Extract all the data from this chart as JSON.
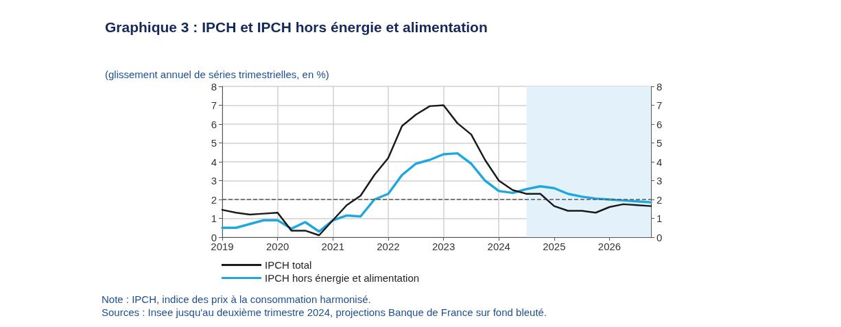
{
  "chart_data": {
    "type": "line",
    "title": "Graphique 3 : IPCH et IPCH hors énergie et alimentation",
    "subtitle": "(glissement annuel de séries trimestrielles, en %)",
    "x": [
      2019,
      2019.25,
      2019.5,
      2019.75,
      2020,
      2020.25,
      2020.5,
      2020.75,
      2021,
      2021.25,
      2021.5,
      2021.75,
      2022,
      2022.25,
      2022.5,
      2022.75,
      2023,
      2023.25,
      2023.5,
      2023.75,
      2024,
      2024.25,
      2024.5,
      2024.75,
      2025,
      2025.25,
      2025.5,
      2025.75,
      2026,
      2026.25,
      2026.5,
      2026.75
    ],
    "series": [
      {
        "name": "IPCH total",
        "color": "#1a1a1a",
        "values": [
          1.45,
          1.3,
          1.2,
          1.25,
          1.3,
          0.35,
          0.35,
          0.1,
          0.9,
          1.7,
          2.2,
          3.3,
          4.2,
          5.9,
          6.5,
          6.95,
          7.0,
          6.05,
          5.45,
          4.1,
          3.0,
          2.5,
          2.3,
          2.3,
          1.65,
          1.4,
          1.4,
          1.3,
          1.6,
          1.75,
          1.7,
          1.65
        ]
      },
      {
        "name": "IPCH hors énergie et alimentation",
        "color": "#1fa8e0",
        "values": [
          0.5,
          0.5,
          0.7,
          0.9,
          0.9,
          0.45,
          0.8,
          0.3,
          0.9,
          1.15,
          1.1,
          2.0,
          2.3,
          3.3,
          3.9,
          4.1,
          4.4,
          4.45,
          3.9,
          3.0,
          2.45,
          2.35,
          2.55,
          2.7,
          2.6,
          2.3,
          2.15,
          2.05,
          2.0,
          1.95,
          1.9,
          1.85
        ]
      }
    ],
    "xlim": [
      2019,
      2026.75
    ],
    "xticks": [
      2019,
      2020,
      2021,
      2022,
      2023,
      2024,
      2025,
      2026
    ],
    "ylim": [
      0,
      8
    ],
    "yticks": [
      0,
      1,
      2,
      3,
      4,
      5,
      6,
      7,
      8
    ],
    "y2lim": [
      0,
      8
    ],
    "y2ticks": [
      0,
      1,
      2,
      3,
      4,
      5,
      6,
      7,
      8
    ],
    "ref_lines": [
      {
        "axis": "y",
        "value": 2,
        "line_style": "dashed",
        "color": "#555555"
      }
    ],
    "bands": [
      {
        "axis": "x",
        "from": 2024.5,
        "to": 2026.75,
        "color": "#e3f1fa"
      }
    ],
    "grid": true,
    "legend": "bottom",
    "marker": "none",
    "line_style": "solid",
    "annotations": [
      "Note : IPCH, indice des prix à la consommation harmonisé.",
      "Sources : Insee jusqu'au deuxième trimestre 2024, projections Banque de France sur fond bleuté."
    ]
  }
}
